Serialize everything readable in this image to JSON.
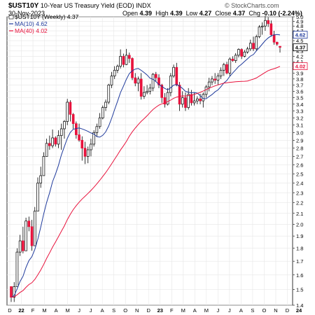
{
  "header": {
    "symbol": "$UST10Y",
    "description": "10-Year US Treasury Yield (EOD) INDX",
    "date": "30-Nov-2023",
    "open_label": "Open",
    "open": "4.39",
    "high_label": "High",
    "high": "4.39",
    "low_label": "Low",
    "low": "4.27",
    "close_label": "Close",
    "close": "4.37",
    "chg_label": "Chg",
    "chg": "-0.10 (-2.24%)",
    "watermark": "© StockCharts.com"
  },
  "chart_data": {
    "type": "candlestick",
    "interval": "Weekly",
    "legend": {
      "price": "$UST10Y (Weekly) 4.37",
      "ma10": "MA(10) 4.62",
      "ma40": "MA(40) 4.02"
    },
    "y_ticks": [
      "1.4",
      "1.5",
      "1.6",
      "1.7",
      "1.8",
      "1.9",
      "2.0",
      "2.1",
      "2.2",
      "2.3",
      "2.4",
      "2.5",
      "2.6",
      "2.7",
      "2.8",
      "2.9",
      "3.0",
      "3.1",
      "3.2",
      "3.3",
      "3.4",
      "3.5",
      "3.6",
      "3.7",
      "3.8",
      "3.9",
      "4.0",
      "4.1",
      "4.2",
      "4.3",
      "4.4",
      "4.5",
      "4.6",
      "4.7",
      "4.8",
      "4.9",
      "5.0"
    ],
    "ylim": [
      1.4,
      5.0
    ],
    "y_scale": "log",
    "x_ticks": [
      "D",
      "22",
      "F",
      "M",
      "A",
      "M",
      "J",
      "J",
      "A",
      "S",
      "O",
      "N",
      "D",
      "23",
      "F",
      "M",
      "A",
      "M",
      "J",
      "J",
      "A",
      "S",
      "O",
      "N",
      "D",
      "24"
    ],
    "price_tags": [
      {
        "label": "4.62",
        "value": 4.62
      },
      {
        "label": "4.37",
        "value": 4.37
      },
      {
        "label": "4.02",
        "value": 4.02
      }
    ],
    "colors": {
      "up": "#ffffff",
      "down": "#e8123c",
      "candle_outline": "#000000",
      "ma10": "#1f3a9c",
      "ma40": "#e8123c",
      "grid": "#e6e6e6"
    },
    "candles": [
      {
        "o": 1.52,
        "h": 1.52,
        "l": 1.42,
        "c": 1.45
      },
      {
        "o": 1.45,
        "h": 1.55,
        "l": 1.42,
        "c": 1.52
      },
      {
        "o": 1.52,
        "h": 1.8,
        "l": 1.52,
        "c": 1.77
      },
      {
        "o": 1.77,
        "h": 1.91,
        "l": 1.74,
        "c": 1.86
      },
      {
        "o": 1.86,
        "h": 1.98,
        "l": 1.76,
        "c": 1.78
      },
      {
        "o": 1.78,
        "h": 2.06,
        "l": 1.78,
        "c": 2.03
      },
      {
        "o": 2.03,
        "h": 2.07,
        "l": 1.94,
        "c": 1.98
      },
      {
        "o": 1.98,
        "h": 2.04,
        "l": 1.78,
        "c": 1.82
      },
      {
        "o": 1.82,
        "h": 2.16,
        "l": 1.82,
        "c": 2.12
      },
      {
        "o": 2.12,
        "h": 2.46,
        "l": 2.12,
        "c": 2.4
      },
      {
        "o": 2.4,
        "h": 2.58,
        "l": 2.35,
        "c": 2.48
      },
      {
        "o": 2.48,
        "h": 2.75,
        "l": 2.48,
        "c": 2.7
      },
      {
        "o": 2.7,
        "h": 2.92,
        "l": 2.7,
        "c": 2.86
      },
      {
        "o": 2.86,
        "h": 2.96,
        "l": 2.78,
        "c": 2.83
      },
      {
        "o": 2.83,
        "h": 3.04,
        "l": 2.8,
        "c": 2.93
      },
      {
        "o": 2.93,
        "h": 2.95,
        "l": 2.82,
        "c": 2.85
      },
      {
        "o": 2.85,
        "h": 3.03,
        "l": 2.8,
        "c": 2.96
      },
      {
        "o": 2.96,
        "h": 3.12,
        "l": 2.78,
        "c": 3.05
      },
      {
        "o": 3.05,
        "h": 3.17,
        "l": 2.92,
        "c": 3.15
      },
      {
        "o": 3.15,
        "h": 3.48,
        "l": 3.1,
        "c": 3.43
      },
      {
        "o": 3.43,
        "h": 3.46,
        "l": 3.15,
        "c": 3.25
      },
      {
        "o": 3.25,
        "h": 3.27,
        "l": 3.05,
        "c": 3.12
      },
      {
        "o": 3.12,
        "h": 3.15,
        "l": 2.92,
        "c": 2.97
      },
      {
        "o": 2.97,
        "h": 3.12,
        "l": 2.88,
        "c": 2.9
      },
      {
        "o": 2.9,
        "h": 2.95,
        "l": 2.65,
        "c": 2.8
      },
      {
        "o": 2.8,
        "h": 2.88,
        "l": 2.61,
        "c": 2.7
      },
      {
        "o": 2.7,
        "h": 2.82,
        "l": 2.62,
        "c": 2.78
      },
      {
        "o": 2.78,
        "h": 2.92,
        "l": 2.7,
        "c": 2.85
      },
      {
        "o": 2.85,
        "h": 3.03,
        "l": 2.82,
        "c": 3.0
      },
      {
        "o": 3.0,
        "h": 3.12,
        "l": 2.95,
        "c": 3.08
      },
      {
        "o": 3.08,
        "h": 3.27,
        "l": 3.05,
        "c": 3.2
      },
      {
        "o": 3.2,
        "h": 3.38,
        "l": 3.18,
        "c": 3.35
      },
      {
        "o": 3.35,
        "h": 3.47,
        "l": 3.3,
        "c": 3.43
      },
      {
        "o": 3.43,
        "h": 3.72,
        "l": 3.4,
        "c": 3.7
      },
      {
        "o": 3.7,
        "h": 3.92,
        "l": 3.65,
        "c": 3.85
      },
      {
        "o": 3.85,
        "h": 4.02,
        "l": 3.8,
        "c": 3.95
      },
      {
        "o": 3.95,
        "h": 4.05,
        "l": 3.9,
        "c": 4.02
      },
      {
        "o": 4.02,
        "h": 4.33,
        "l": 3.98,
        "c": 4.2
      },
      {
        "o": 4.2,
        "h": 4.25,
        "l": 4.0,
        "c": 4.05
      },
      {
        "o": 4.05,
        "h": 4.34,
        "l": 4.04,
        "c": 4.22
      },
      {
        "o": 4.22,
        "h": 4.27,
        "l": 4.08,
        "c": 4.16
      },
      {
        "o": 4.16,
        "h": 4.18,
        "l": 3.78,
        "c": 3.82
      },
      {
        "o": 3.82,
        "h": 3.9,
        "l": 3.68,
        "c": 3.73
      },
      {
        "o": 3.73,
        "h": 3.84,
        "l": 3.6,
        "c": 3.8
      },
      {
        "o": 3.8,
        "h": 3.9,
        "l": 3.47,
        "c": 3.52
      },
      {
        "o": 3.52,
        "h": 3.68,
        "l": 3.48,
        "c": 3.58
      },
      {
        "o": 3.58,
        "h": 3.7,
        "l": 3.55,
        "c": 3.6
      },
      {
        "o": 3.6,
        "h": 3.72,
        "l": 3.55,
        "c": 3.65
      },
      {
        "o": 3.65,
        "h": 3.9,
        "l": 3.6,
        "c": 3.88
      },
      {
        "o": 3.88,
        "h": 3.92,
        "l": 3.75,
        "c": 3.82
      },
      {
        "o": 3.82,
        "h": 3.88,
        "l": 3.65,
        "c": 3.7
      },
      {
        "o": 3.7,
        "h": 3.72,
        "l": 3.42,
        "c": 3.5
      },
      {
        "o": 3.5,
        "h": 3.57,
        "l": 3.35,
        "c": 3.4
      },
      {
        "o": 3.4,
        "h": 3.65,
        "l": 3.38,
        "c": 3.58
      },
      {
        "o": 3.58,
        "h": 3.9,
        "l": 3.52,
        "c": 3.85
      },
      {
        "o": 3.85,
        "h": 4.05,
        "l": 3.82,
        "c": 4.0
      },
      {
        "o": 4.0,
        "h": 4.08,
        "l": 3.68,
        "c": 3.7
      },
      {
        "o": 3.7,
        "h": 3.75,
        "l": 3.3,
        "c": 3.4
      },
      {
        "o": 3.4,
        "h": 3.6,
        "l": 3.35,
        "c": 3.5
      },
      {
        "o": 3.5,
        "h": 3.58,
        "l": 3.3,
        "c": 3.35
      },
      {
        "o": 3.35,
        "h": 3.65,
        "l": 3.32,
        "c": 3.55
      },
      {
        "o": 3.55,
        "h": 3.62,
        "l": 3.38,
        "c": 3.42
      },
      {
        "o": 3.42,
        "h": 3.58,
        "l": 3.38,
        "c": 3.45
      },
      {
        "o": 3.45,
        "h": 3.52,
        "l": 3.4,
        "c": 3.48
      },
      {
        "o": 3.48,
        "h": 3.56,
        "l": 3.4,
        "c": 3.45
      },
      {
        "o": 3.45,
        "h": 3.58,
        "l": 3.35,
        "c": 3.55
      },
      {
        "o": 3.55,
        "h": 3.7,
        "l": 3.5,
        "c": 3.67
      },
      {
        "o": 3.67,
        "h": 3.82,
        "l": 3.6,
        "c": 3.75
      },
      {
        "o": 3.75,
        "h": 3.85,
        "l": 3.7,
        "c": 3.8
      },
      {
        "o": 3.8,
        "h": 3.9,
        "l": 3.72,
        "c": 3.78
      },
      {
        "o": 3.78,
        "h": 3.9,
        "l": 3.7,
        "c": 3.85
      },
      {
        "o": 3.85,
        "h": 4.0,
        "l": 3.8,
        "c": 3.95
      },
      {
        "o": 3.95,
        "h": 4.08,
        "l": 3.85,
        "c": 4.05
      },
      {
        "o": 4.05,
        "h": 4.1,
        "l": 3.88,
        "c": 3.9
      },
      {
        "o": 3.9,
        "h": 4.18,
        "l": 3.85,
        "c": 4.15
      },
      {
        "o": 4.15,
        "h": 4.2,
        "l": 4.1,
        "c": 4.12
      },
      {
        "o": 4.12,
        "h": 4.26,
        "l": 4.08,
        "c": 4.22
      },
      {
        "o": 4.22,
        "h": 4.35,
        "l": 4.18,
        "c": 4.33
      },
      {
        "o": 4.33,
        "h": 4.35,
        "l": 4.15,
        "c": 4.2
      },
      {
        "o": 4.2,
        "h": 4.32,
        "l": 4.18,
        "c": 4.28
      },
      {
        "o": 4.28,
        "h": 4.38,
        "l": 4.25,
        "c": 4.34
      },
      {
        "o": 4.34,
        "h": 4.52,
        "l": 4.3,
        "c": 4.45
      },
      {
        "o": 4.45,
        "h": 4.58,
        "l": 4.3,
        "c": 4.34
      },
      {
        "o": 4.34,
        "h": 4.62,
        "l": 4.3,
        "c": 4.58
      },
      {
        "o": 4.58,
        "h": 4.82,
        "l": 4.55,
        "c": 4.78
      },
      {
        "o": 4.78,
        "h": 4.88,
        "l": 4.62,
        "c": 4.8
      },
      {
        "o": 4.8,
        "h": 5.02,
        "l": 4.7,
        "c": 4.92
      },
      {
        "o": 4.92,
        "h": 4.99,
        "l": 4.78,
        "c": 4.85
      },
      {
        "o": 4.85,
        "h": 4.92,
        "l": 4.58,
        "c": 4.62
      },
      {
        "o": 4.62,
        "h": 4.7,
        "l": 4.42,
        "c": 4.47
      },
      {
        "o": 4.47,
        "h": 4.48,
        "l": 4.4,
        "c": 4.43
      },
      {
        "o": 4.39,
        "h": 4.39,
        "l": 4.27,
        "c": 4.37
      }
    ]
  }
}
